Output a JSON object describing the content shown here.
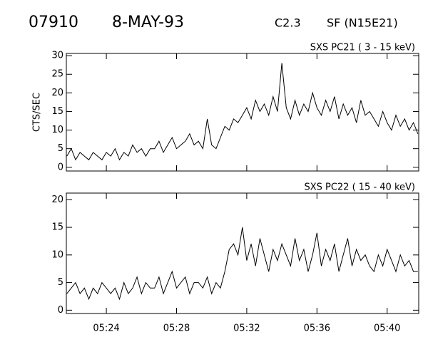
{
  "header": {
    "event": "07910",
    "date": "8-MAY-93",
    "class": "C2.3",
    "flare": "SF (N15E21)"
  },
  "chart_data": [
    {
      "type": "line",
      "title": "SXS PC21  (  3 - 15 keV)",
      "y_label": "CTS/SEC",
      "xlim": [
        321.72,
        341.8
      ],
      "ylim": [
        -1,
        30.6
      ],
      "yticks": [
        0,
        5,
        10,
        15,
        20,
        25,
        30
      ],
      "x": [
        321.75,
        322,
        322.25,
        322.5,
        322.75,
        323,
        323.25,
        323.5,
        323.75,
        324,
        324.25,
        324.5,
        324.75,
        325,
        325.25,
        325.5,
        325.75,
        326,
        326.25,
        326.5,
        326.75,
        327,
        327.25,
        327.5,
        327.75,
        328,
        328.25,
        328.5,
        328.75,
        329,
        329.25,
        329.5,
        329.75,
        330,
        330.25,
        330.5,
        330.75,
        331,
        331.25,
        331.5,
        331.75,
        332,
        332.25,
        332.5,
        332.75,
        333,
        333.25,
        333.5,
        333.75,
        334,
        334.25,
        334.5,
        334.75,
        335,
        335.25,
        335.5,
        335.75,
        336,
        336.25,
        336.5,
        336.75,
        337,
        337.25,
        337.5,
        337.75,
        338,
        338.25,
        338.5,
        338.75,
        339,
        339.25,
        339.5,
        339.75,
        340,
        340.25,
        340.5,
        340.75,
        341,
        341.25,
        341.5,
        341.75
      ],
      "series": [
        {
          "color": "#000000",
          "values": [
            3,
            5,
            2,
            4,
            3,
            2,
            4,
            3,
            2,
            4,
            3,
            5,
            2,
            4,
            3,
            6,
            4,
            5,
            3,
            5,
            5,
            7,
            4,
            6,
            8,
            5,
            6,
            7,
            9,
            6,
            7,
            5,
            13,
            6,
            5,
            8,
            11,
            10,
            13,
            12,
            14,
            16,
            13,
            18,
            15,
            17,
            14,
            19,
            15,
            28,
            16,
            13,
            18,
            14,
            17,
            15,
            20,
            16,
            14,
            18,
            15,
            19,
            13,
            17,
            14,
            16,
            12,
            18,
            14,
            15,
            13,
            11,
            15,
            12,
            10,
            14,
            11,
            13,
            10,
            12,
            9
          ]
        }
      ]
    },
    {
      "type": "line",
      "title": "SXS PC22  ( 15 - 40 keV)",
      "xlim": [
        321.72,
        341.8
      ],
      "ylim": [
        -0.6,
        21.2
      ],
      "yticks": [
        0,
        5,
        10,
        15,
        20
      ],
      "xticks": [
        {
          "value": 324,
          "label": "05:24"
        },
        {
          "value": 328,
          "label": "05:28"
        },
        {
          "value": 332,
          "label": "05:32"
        },
        {
          "value": 336,
          "label": "05:36"
        },
        {
          "value": 340,
          "label": "05:40"
        }
      ],
      "x": [
        321.75,
        322,
        322.25,
        322.5,
        322.75,
        323,
        323.25,
        323.5,
        323.75,
        324,
        324.25,
        324.5,
        324.75,
        325,
        325.25,
        325.5,
        325.75,
        326,
        326.25,
        326.5,
        326.75,
        327,
        327.25,
        327.5,
        327.75,
        328,
        328.25,
        328.5,
        328.75,
        329,
        329.25,
        329.5,
        329.75,
        330,
        330.25,
        330.5,
        330.75,
        331,
        331.25,
        331.5,
        331.75,
        332,
        332.25,
        332.5,
        332.75,
        333,
        333.25,
        333.5,
        333.75,
        334,
        334.25,
        334.5,
        334.75,
        335,
        335.25,
        335.5,
        335.75,
        336,
        336.25,
        336.5,
        336.75,
        337,
        337.25,
        337.5,
        337.75,
        338,
        338.25,
        338.5,
        338.75,
        339,
        339.25,
        339.5,
        339.75,
        340,
        340.25,
        340.5,
        340.75,
        341,
        341.25,
        341.5,
        341.75
      ],
      "series": [
        {
          "color": "#000000",
          "values": [
            3,
            4,
            5,
            3,
            4,
            2,
            4,
            3,
            5,
            4,
            3,
            4,
            2,
            5,
            3,
            4,
            6,
            3,
            5,
            4,
            4,
            6,
            3,
            5,
            7,
            4,
            5,
            6,
            3,
            5,
            5,
            4,
            6,
            3,
            5,
            4,
            7,
            11,
            12,
            10,
            15,
            9,
            12,
            8,
            13,
            10,
            7,
            11,
            9,
            12,
            10,
            8,
            13,
            9,
            11,
            7,
            10,
            14,
            8,
            11,
            9,
            12,
            7,
            10,
            13,
            8,
            11,
            9,
            10,
            8,
            7,
            10,
            8,
            11,
            9,
            7,
            10,
            8,
            9,
            7,
            7
          ]
        }
      ]
    }
  ]
}
